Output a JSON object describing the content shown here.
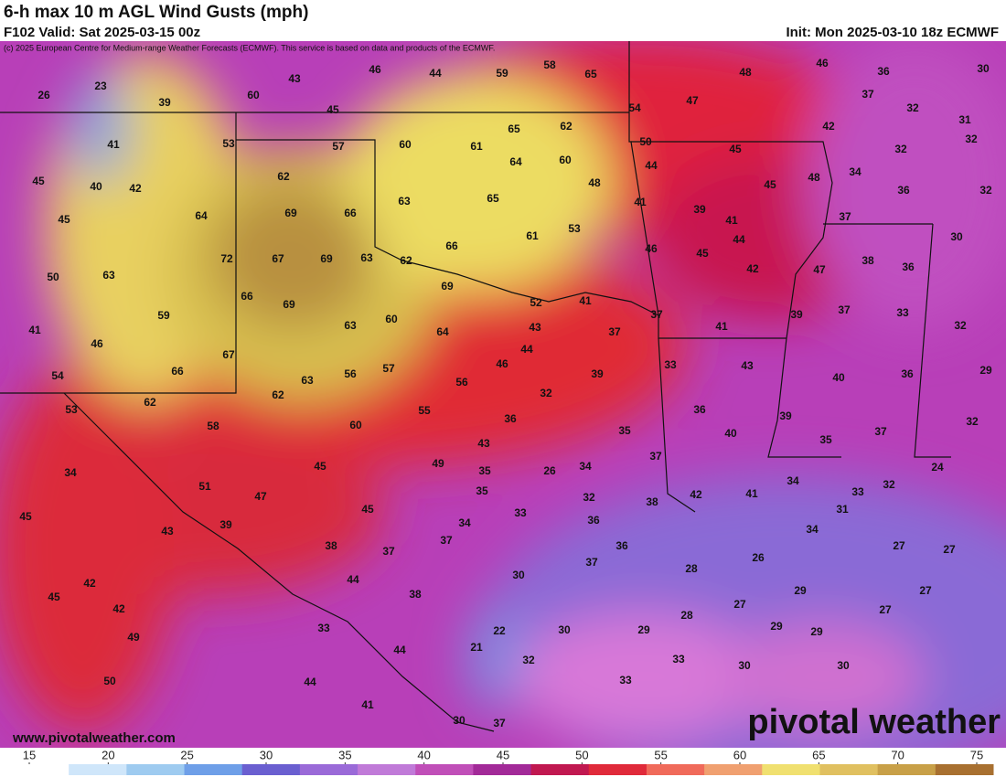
{
  "header": {
    "title": "6-h max 10 m AGL Wind Gusts (mph)",
    "valid": "F102 Valid: Sat 2025-03-15 00z",
    "init": "Init: Mon 2025-03-10 18z ECMWF",
    "copyright": "(c) 2025 European Centre for Medium-range Weather Forecasts (ECMWF). This service is based on data and products of the ECMWF."
  },
  "footer": {
    "url": "www.pivotalweather.com",
    "logo": "pivotal weather"
  },
  "colorbar": {
    "ticks": [
      15,
      20,
      25,
      30,
      35,
      40,
      45,
      50,
      55,
      60,
      65,
      70,
      75
    ]
  },
  "map_labels": [
    26,
    23,
    39,
    60,
    43,
    46,
    44,
    59,
    58,
    65,
    48,
    46,
    36,
    30,
    45,
    54,
    47,
    37,
    32,
    31,
    41,
    53,
    57,
    60,
    61,
    65,
    62,
    50,
    45,
    42,
    32,
    32,
    45,
    40,
    42,
    62,
    64,
    60,
    48,
    44,
    45,
    48,
    34,
    36,
    32,
    45,
    64,
    69,
    66,
    63,
    65,
    41,
    39,
    41,
    37,
    30,
    72,
    67,
    69,
    63,
    62,
    66,
    61,
    53,
    46,
    45,
    44,
    42,
    47,
    38,
    36,
    50,
    63,
    66,
    69,
    69,
    52,
    41,
    37,
    39,
    37,
    33,
    32,
    41,
    59,
    46,
    63,
    60,
    64,
    43,
    37,
    41,
    54,
    67,
    66,
    63,
    56,
    57,
    56,
    46,
    44,
    39,
    33,
    43,
    40,
    36,
    29,
    53,
    62,
    62,
    58,
    60,
    55,
    32,
    36,
    35,
    36,
    40,
    39,
    37,
    35,
    32,
    34,
    51,
    47,
    45,
    49,
    43,
    35,
    26,
    34,
    37,
    24,
    35,
    32,
    38,
    42,
    41,
    34,
    33,
    32,
    45,
    43,
    39,
    45,
    34,
    33,
    36,
    36,
    37,
    37,
    38,
    34,
    31,
    27,
    27,
    42,
    45,
    42,
    44,
    38,
    30,
    37,
    28,
    26,
    29,
    27,
    49,
    33,
    44,
    22,
    21,
    30,
    29,
    28,
    27,
    29,
    29,
    27,
    50,
    44,
    32,
    33,
    33,
    30,
    30,
    41,
    30,
    37
  ]
}
